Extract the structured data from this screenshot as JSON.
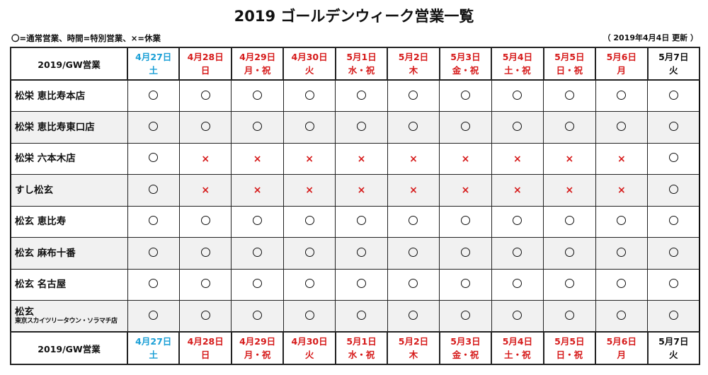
{
  "title": "2019 ゴールデンウィーク営業一覧",
  "legend": "〇=通常営業、時間=特別営業、×=休業",
  "updated": "（ 2019年4月4日 更新 ）",
  "header_label": "2019/GW営業",
  "colors": {
    "saturday": "#1a9fd6",
    "holiday": "#d61a1a",
    "weekday": "#111111"
  },
  "days": [
    {
      "date": "4月27日",
      "dow": "土",
      "color": "sat"
    },
    {
      "date": "4月28日",
      "dow": "日",
      "color": "red"
    },
    {
      "date": "4月29日",
      "dow": "月・祝",
      "color": "red"
    },
    {
      "date": "4月30日",
      "dow": "火",
      "color": "red"
    },
    {
      "date": "5月1日",
      "dow": "水・祝",
      "color": "red"
    },
    {
      "date": "5月2日",
      "dow": "木",
      "color": "red"
    },
    {
      "date": "5月3日",
      "dow": "金・祝",
      "color": "red"
    },
    {
      "date": "5月4日",
      "dow": "土・祝",
      "color": "red"
    },
    {
      "date": "5月5日",
      "dow": "日・祝",
      "color": "red"
    },
    {
      "date": "5月6日",
      "dow": "月",
      "color": "red"
    },
    {
      "date": "5月7日",
      "dow": "火",
      "color": "blk"
    }
  ],
  "stores": [
    {
      "name": "松栄 恵比寿本店",
      "sub": "",
      "marks": [
        "〇",
        "〇",
        "〇",
        "〇",
        "〇",
        "〇",
        "〇",
        "〇",
        "〇",
        "〇",
        "〇"
      ]
    },
    {
      "name": "松栄 恵比寿東口店",
      "sub": "",
      "marks": [
        "〇",
        "〇",
        "〇",
        "〇",
        "〇",
        "〇",
        "〇",
        "〇",
        "〇",
        "〇",
        "〇"
      ]
    },
    {
      "name": "松栄 六本木店",
      "sub": "",
      "marks": [
        "〇",
        "×",
        "×",
        "×",
        "×",
        "×",
        "×",
        "×",
        "×",
        "×",
        "〇"
      ]
    },
    {
      "name": "すし松玄",
      "sub": "",
      "marks": [
        "〇",
        "×",
        "×",
        "×",
        "×",
        "×",
        "×",
        "×",
        "×",
        "×",
        "〇"
      ]
    },
    {
      "name": "松玄 恵比寿",
      "sub": "",
      "marks": [
        "〇",
        "〇",
        "〇",
        "〇",
        "〇",
        "〇",
        "〇",
        "〇",
        "〇",
        "〇",
        "〇"
      ]
    },
    {
      "name": "松玄 麻布十番",
      "sub": "",
      "marks": [
        "〇",
        "〇",
        "〇",
        "〇",
        "〇",
        "〇",
        "〇",
        "〇",
        "〇",
        "〇",
        "〇"
      ]
    },
    {
      "name": "松玄 名古屋",
      "sub": "",
      "marks": [
        "〇",
        "〇",
        "〇",
        "〇",
        "〇",
        "〇",
        "〇",
        "〇",
        "〇",
        "〇",
        "〇"
      ]
    },
    {
      "name": "松玄",
      "sub": "東京スカイツリータウン・ソラマチ店",
      "marks": [
        "〇",
        "〇",
        "〇",
        "〇",
        "〇",
        "〇",
        "〇",
        "〇",
        "〇",
        "〇",
        "〇"
      ]
    }
  ]
}
